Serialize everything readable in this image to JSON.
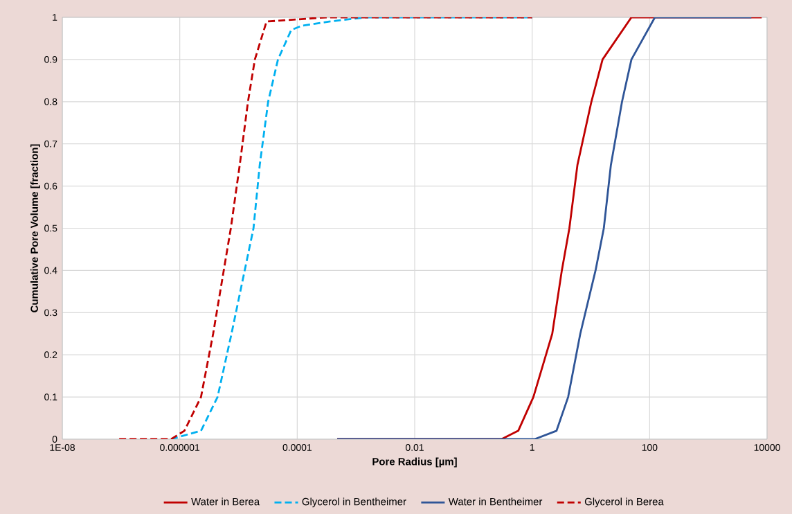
{
  "chart_data": {
    "type": "line",
    "xlabel": "Pore Radius [µm]",
    "ylabel": "Cumulative Pore Volume [fraction]",
    "log": "x",
    "xlim": [
      1e-08,
      10000
    ],
    "ylim": [
      0,
      1
    ],
    "xticks": [
      {
        "value": 1e-08,
        "label": "1E-08"
      },
      {
        "value": 1e-06,
        "label": "0.000001"
      },
      {
        "value": 0.0001,
        "label": "0.0001"
      },
      0.01,
      1,
      100,
      10000
    ],
    "yticks": [
      0,
      0.1,
      0.2,
      0.3,
      0.4,
      0.5,
      0.6,
      0.7,
      0.8,
      0.9,
      1
    ],
    "grid": true,
    "legend": "bottom",
    "marker": "none",
    "series": [
      {
        "name": "Water in Berea",
        "color": "#c00000",
        "line_style": "solid",
        "x": [
          0.00048,
          0.3,
          0.58,
          1.05,
          2.2,
          3.2,
          4.3,
          5.9,
          10.2,
          15.8,
          49,
          8100
        ],
        "values": [
          0,
          0,
          0.02,
          0.1,
          0.25,
          0.4,
          0.5,
          0.65,
          0.8,
          0.9,
          1,
          1
        ]
      },
      {
        "name": "Glycerol in Bentheimer",
        "color": "#00b0f0",
        "line_style": "dashed",
        "x": [
          7.1e-07,
          2.3e-06,
          4.4e-06,
          7.6e-06,
          1.8e-05,
          2.3e-05,
          3.2e-05,
          4.7e-05,
          7.9e-05,
          0.00012,
          0.00035,
          0.0015,
          1
        ],
        "values": [
          0,
          0.02,
          0.1,
          0.25,
          0.5,
          0.65,
          0.8,
          0.9,
          0.97,
          0.98,
          0.99,
          1,
          1
        ]
      },
      {
        "name": "Water in Bentheimer",
        "color": "#2f5597",
        "line_style": "solid",
        "x": [
          0.00048,
          1.1,
          2.6,
          4.1,
          6.6,
          12,
          16.6,
          21.9,
          33.9,
          49,
          123,
          5400
        ],
        "values": [
          0,
          0,
          0.02,
          0.1,
          0.25,
          0.4,
          0.5,
          0.65,
          0.8,
          0.9,
          1,
          1
        ]
      },
      {
        "name": "Glycerol in Berea",
        "color": "#c00000",
        "line_style": "dashed",
        "x": [
          9.3e-08,
          7.1e-07,
          1.2e-06,
          2.3e-06,
          3.7e-06,
          7.4e-06,
          1.05e-05,
          1.45e-05,
          1.9e-05,
          3e-05,
          0.00032,
          1
        ],
        "values": [
          0,
          0,
          0.02,
          0.1,
          0.25,
          0.5,
          0.65,
          0.8,
          0.9,
          0.99,
          1,
          1
        ]
      }
    ]
  }
}
